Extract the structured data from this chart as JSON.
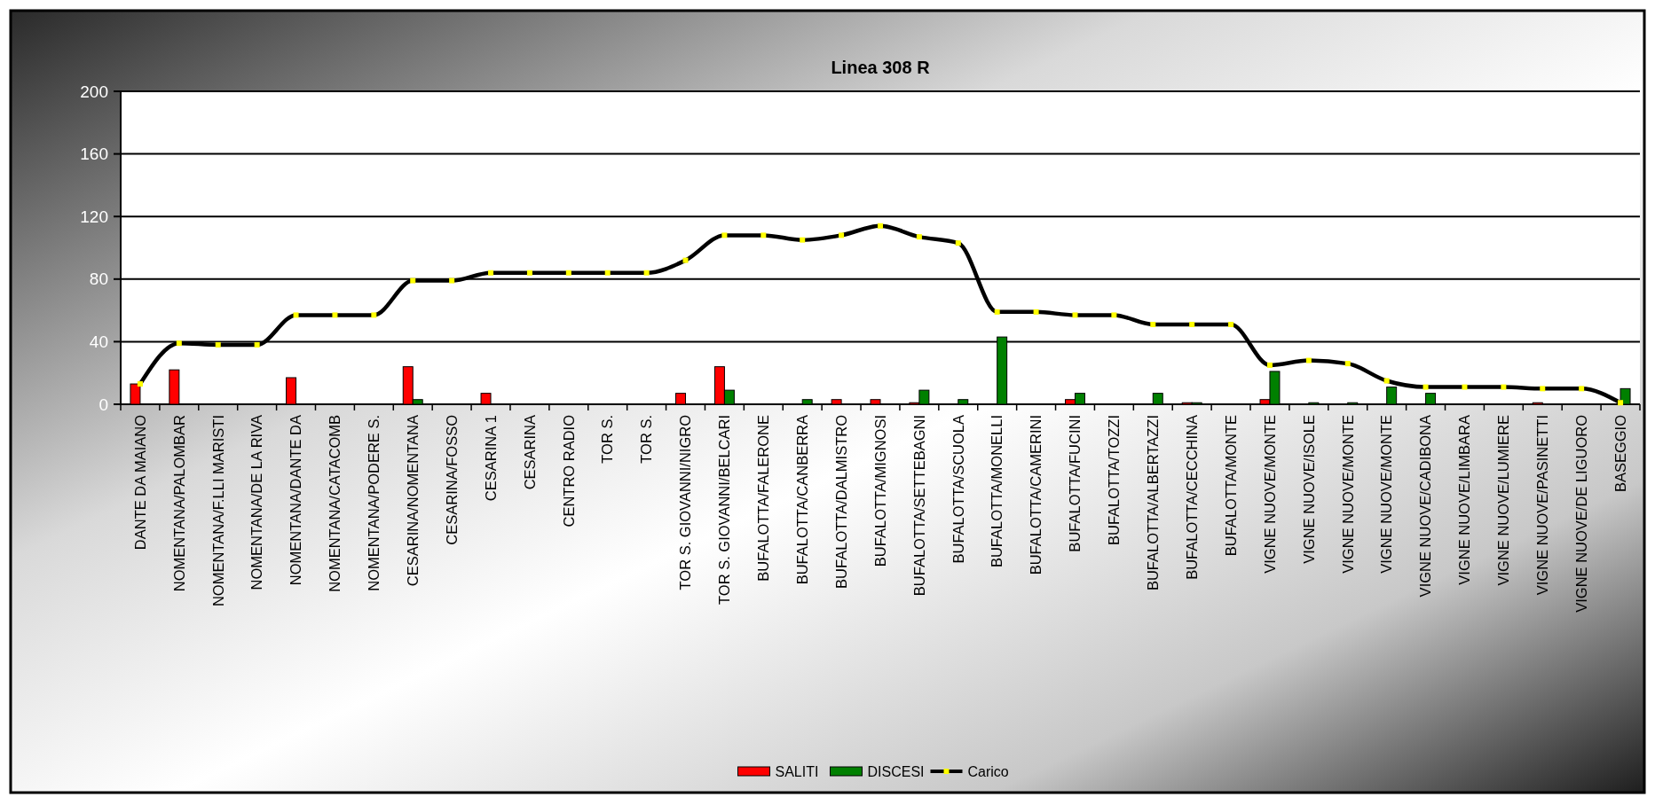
{
  "chart_data": {
    "type": "bar",
    "title": "Linea 308 R",
    "categories": [
      "DANTE DA MAIANO",
      "NOMENTANA/PALOMBAR",
      "NOMENTANA/F.LLI MARISTI",
      "NOMENTANA/DE LA RIVA",
      "NOMENTANA/DANTE DA",
      "NOMENTANA/CATACOMB",
      "NOMENTANA/PODERE S.",
      "CESARINA/NOMENTANA",
      "CESARINA/FOSSO",
      "CESARINA 1",
      "CESARINA",
      "CENTRO RADIO",
      "TOR S.",
      "TOR S.",
      "TOR S. GIOVANNI/NIGRO",
      "TOR S. GIOVANNI/BELCARI",
      "BUFALOTTA/FALERONE",
      "BUFALOTTA/CANBERRA",
      "BUFALOTTA/DALMISTRO",
      "BUFALOTTA/MIGNOSI",
      "BUFALOTTA/SETTEBAGNI",
      "BUFALOTTA/SCUOLA",
      "BUFALOTTA/MONELLI",
      "BUFALOTTA/CAMERINI",
      "BUFALOTTA/FUCINI",
      "BUFALOTTA/TOZZI",
      "BUFALOTTA/ALBERTAZZI",
      "BUFALOTTA/CECCHINA",
      "BUFALOTTA/MONTE",
      "VIGNE NUOVE/MONTE",
      "VIGNE NUOVE/ISOLE",
      "VIGNE NUOVE/MONTE",
      "VIGNE NUOVE/MONTE",
      "VIGNE NUOVE/CADIBONA",
      "VIGNE NUOVE/LIMBARA",
      "VIGNE NUOVE/LUMIERE",
      "VIGNE NUOVE/PASINETTI",
      "VIGNE NUOVE/DE LIGUORO",
      "BASEGGIO"
    ],
    "series": [
      {
        "name": "SALITI",
        "color": "#ff0000",
        "values": [
          13,
          22,
          0,
          0,
          17,
          0,
          0,
          24,
          0,
          7,
          0,
          0,
          0,
          0,
          7,
          24,
          0,
          0,
          3,
          3,
          1,
          0,
          0,
          0,
          3,
          0,
          0,
          1,
          0,
          3,
          0,
          0,
          0,
          0,
          0,
          0,
          1,
          0,
          0
        ]
      },
      {
        "name": "DISCESI",
        "color": "#008000",
        "values": [
          0,
          0,
          0,
          0,
          0,
          0,
          0,
          3,
          0,
          0,
          0,
          0,
          0,
          0,
          0,
          9,
          0,
          3,
          0,
          0,
          9,
          3,
          43,
          0,
          7,
          0,
          7,
          1,
          0,
          21,
          1,
          1,
          11,
          7,
          0,
          0,
          0,
          0,
          10
        ]
      },
      {
        "name": "Carico",
        "type": "line",
        "color": "#000000",
        "values": [
          13,
          39,
          38,
          38,
          57,
          57,
          57,
          79,
          79,
          84,
          84,
          84,
          84,
          84,
          92,
          108,
          108,
          105,
          108,
          114,
          107,
          103,
          59,
          59,
          57,
          57,
          51,
          51,
          51,
          25,
          28,
          26,
          15,
          11,
          11,
          11,
          10,
          10,
          1
        ]
      }
    ],
    "ylim": [
      0,
      200
    ],
    "yticks": [
      0,
      40,
      80,
      120,
      160,
      200
    ],
    "grid": "y",
    "legend": "bottom",
    "marker": "square",
    "line_style": "solid"
  }
}
